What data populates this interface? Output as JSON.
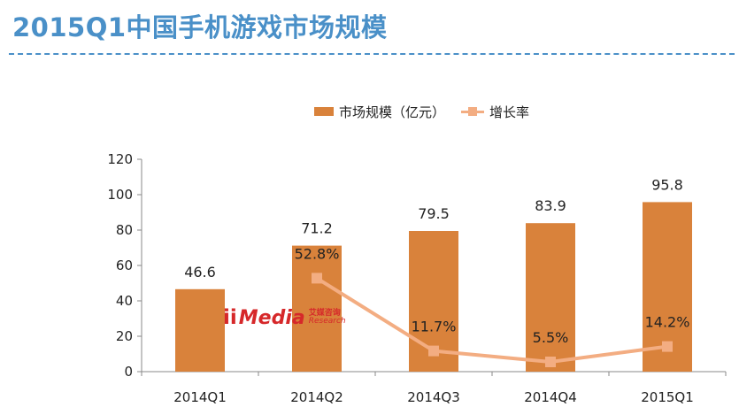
{
  "page": {
    "title": "2015Q1中国手机游戏市场规模"
  },
  "legend": {
    "bar_label": "市场规模（亿元）",
    "line_label": "增长率"
  },
  "watermark": {
    "logo": "ii",
    "word": "Media",
    "cn": "艾媒咨询",
    "en": "Research"
  },
  "colors": {
    "title": "#4a90c8",
    "bar": "#d9823b",
    "line": "#f3ad82"
  },
  "chart_data": {
    "type": "bar",
    "title": "2015Q1中国手机游戏市场规模",
    "categories": [
      "2014Q1",
      "2014Q2",
      "2014Q3",
      "2014Q4",
      "2015Q1"
    ],
    "series": [
      {
        "name": "市场规模（亿元）",
        "type": "bar",
        "values": [
          46.6,
          71.2,
          79.5,
          83.9,
          95.8
        ],
        "labels": [
          "46.6",
          "71.2",
          "79.5",
          "83.9",
          "95.8"
        ]
      },
      {
        "name": "增长率",
        "type": "line",
        "values": [
          52.8,
          11.7,
          5.5,
          14.2
        ],
        "x": [
          "2014Q2",
          "2014Q3",
          "2014Q4",
          "2015Q1"
        ],
        "labels": [
          "52.8%",
          "11.7%",
          "5.5%",
          "14.2%"
        ]
      }
    ],
    "ylim": [
      0,
      120
    ],
    "yticks": [
      0,
      20,
      40,
      60,
      80,
      100,
      120
    ],
    "grid": false,
    "legend_position": "top-center"
  }
}
